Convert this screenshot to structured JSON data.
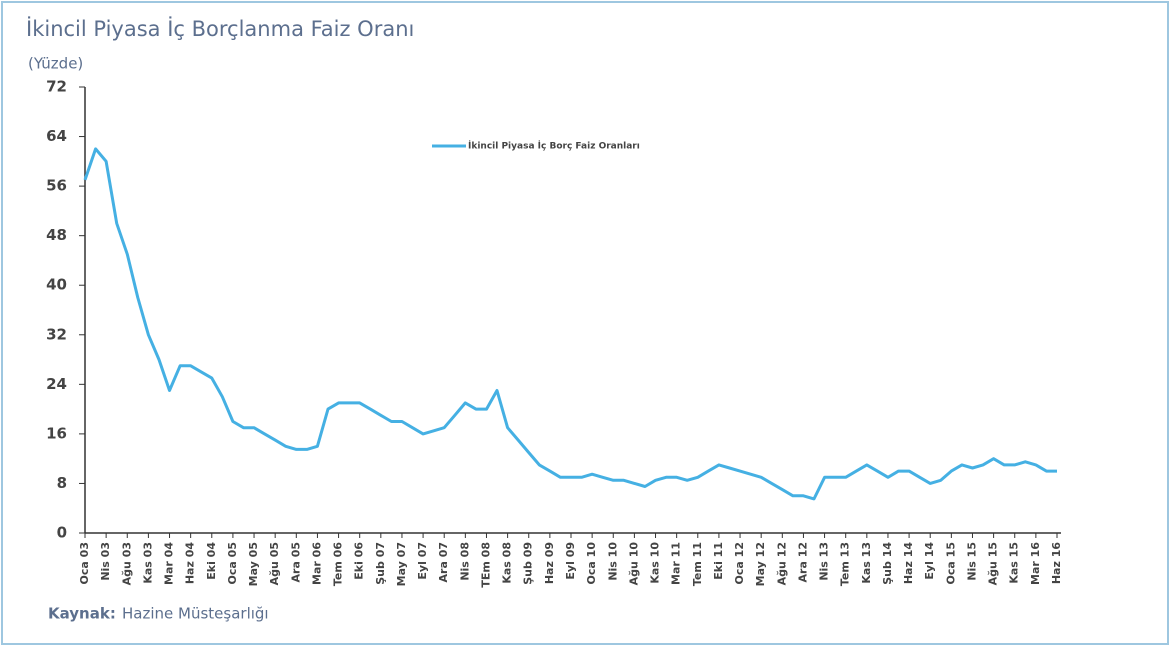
{
  "chart_data": {
    "type": "line",
    "title": "İkincil Piyasa İç Borçlanma Faiz Oranı",
    "y_label": "(Yüzde)",
    "source_label": "Kaynak:",
    "source": "Hazine Müsteşarlığı",
    "categories": [
      "Oca 03",
      null,
      "Nis 03",
      null,
      "Ağu 03",
      null,
      "Kas 03",
      null,
      "Mar 04",
      null,
      "Haz 04",
      null,
      "Eki 04",
      null,
      "Oca 05",
      null,
      "May 05",
      null,
      "Ağu 05",
      null,
      "Ara 05",
      null,
      "Mar 06",
      null,
      "Tem 06",
      null,
      "Eki 06",
      null,
      "Şub 07",
      null,
      "May 07",
      null,
      "Eyl 07",
      null,
      "Ara 07",
      null,
      "Nis 08",
      null,
      "TEm 08",
      null,
      "Kas 08",
      null,
      "Şub 09",
      null,
      "Haz 09",
      null,
      "Eyl 09",
      null,
      "Oca 10",
      null,
      "Nis 10",
      null,
      "Ağu 10",
      null,
      "Kas 10",
      null,
      "Mar 11",
      null,
      "Tem 11",
      null,
      "Eki 11",
      null,
      "Oca 12",
      null,
      "May 12",
      null,
      "Ağu 12",
      null,
      "Ara 12",
      null,
      "Nis 13",
      null,
      "Tem 13",
      null,
      "Kas 13",
      null,
      "Şub 14",
      null,
      "Haz 14",
      null,
      "Eyl 14",
      null,
      "Oca 15",
      null,
      "Nis 15",
      null,
      "Ağu 15",
      null,
      "Kas 15",
      null,
      "Mar 16",
      null,
      "Haz 16"
    ],
    "series": [
      {
        "name": "İkincil Piyasa İç Borç Faiz Oranları",
        "color": "#45b0e3",
        "values": [
          57,
          62,
          60,
          50,
          45,
          38,
          32,
          28,
          23,
          27,
          27,
          26,
          25,
          22,
          18,
          17,
          17,
          16,
          15,
          14,
          13.5,
          13.5,
          14,
          20,
          21,
          21,
          21,
          20,
          19,
          18,
          18,
          17,
          16,
          16.5,
          17,
          19,
          21,
          20,
          20,
          23,
          17,
          15,
          13,
          11,
          10,
          9,
          9,
          9,
          9.5,
          9,
          8.5,
          8.5,
          8,
          7.5,
          8.5,
          9,
          9,
          8.5,
          9,
          10,
          11,
          10.5,
          10,
          9.5,
          9,
          8,
          7,
          6,
          6,
          5.5,
          9,
          9,
          9,
          10,
          11,
          10,
          9,
          10,
          10,
          9,
          8,
          8.5,
          10,
          11,
          10.5,
          11,
          12,
          11,
          11,
          11.5,
          11,
          10,
          10
        ]
      }
    ],
    "ylim": [
      0,
      72
    ],
    "yticks": [
      0,
      8,
      16,
      24,
      32,
      40,
      48,
      56,
      64,
      72
    ]
  }
}
